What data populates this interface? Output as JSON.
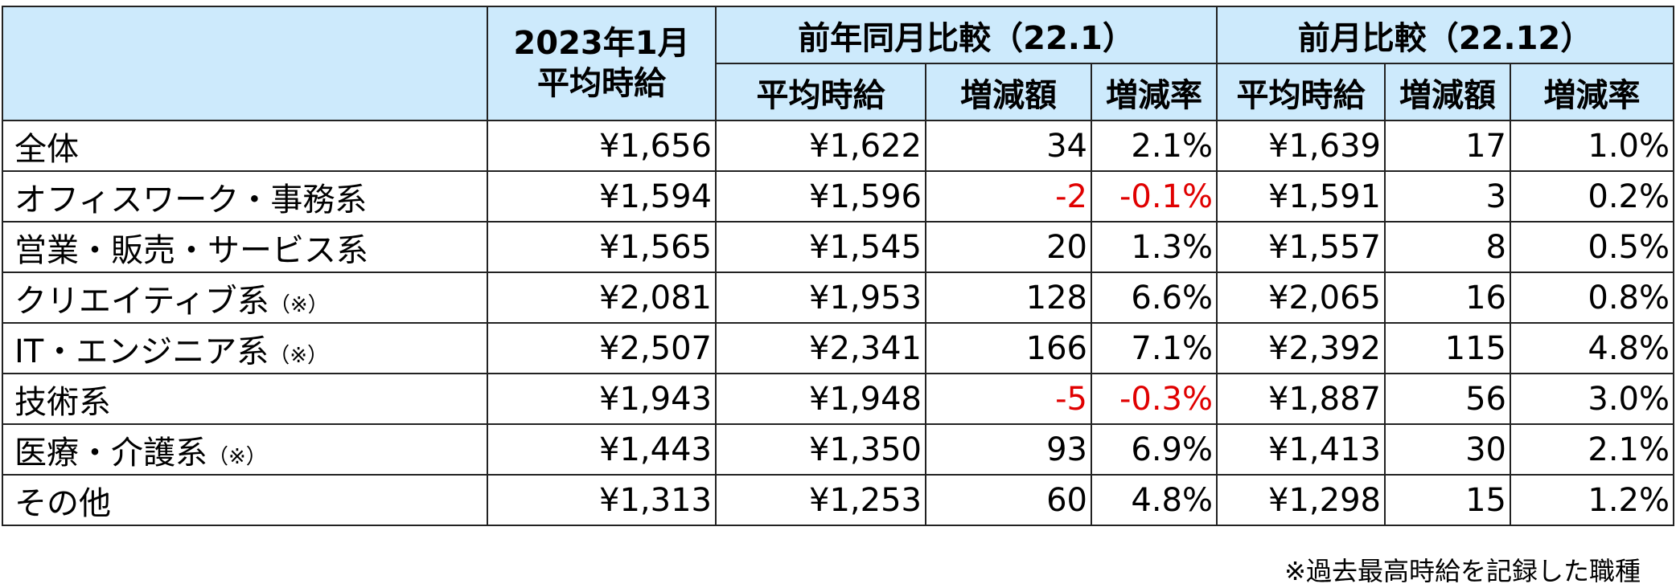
{
  "table": {
    "header": {
      "corner_lines": [
        "2023年1月",
        "平均時給"
      ],
      "groups": [
        "前年同月比較（22.1）",
        "前月比較（22.12）"
      ],
      "subheaders": [
        "平均時給",
        "増減額",
        "増減率",
        "平均時給",
        "増減額",
        "増減率"
      ]
    },
    "rows": [
      {
        "label": "全体",
        "cells": [
          "¥1,656",
          "¥1,622",
          "34",
          "2.1%",
          "¥1,639",
          "17",
          "1.0%"
        ]
      },
      {
        "label": "オフィスワーク・事務系",
        "cells": [
          "¥1,594",
          "¥1,596",
          "-2",
          "-0.1%",
          "¥1,591",
          "3",
          "0.2%"
        ]
      },
      {
        "label": "営業・販売・サービス系",
        "cells": [
          "¥1,565",
          "¥1,545",
          "20",
          "1.3%",
          "¥1,557",
          "8",
          "0.5%"
        ]
      },
      {
        "label": "クリエイティブ系",
        "note": "（※）",
        "cells": [
          "¥2,081",
          "¥1,953",
          "128",
          "6.6%",
          "¥2,065",
          "16",
          "0.8%"
        ]
      },
      {
        "label": "IT・エンジニア系",
        "note": "（※）",
        "cells": [
          "¥2,507",
          "¥2,341",
          "166",
          "7.1%",
          "¥2,392",
          "115",
          "4.8%"
        ]
      },
      {
        "label": "技術系",
        "cells": [
          "¥1,943",
          "¥1,948",
          "-5",
          "-0.3%",
          "¥1,887",
          "56",
          "3.0%"
        ]
      },
      {
        "label": "医療・介護系",
        "note": "（※）",
        "cells": [
          "¥1,443",
          "¥1,350",
          "93",
          "6.9%",
          "¥1,413",
          "30",
          "2.1%"
        ]
      },
      {
        "label": "その他",
        "cells": [
          "¥1,313",
          "¥1,253",
          "60",
          "4.8%",
          "¥1,298",
          "15",
          "1.2%"
        ]
      }
    ],
    "footnote": "※過去最高時給を記録した職種"
  }
}
